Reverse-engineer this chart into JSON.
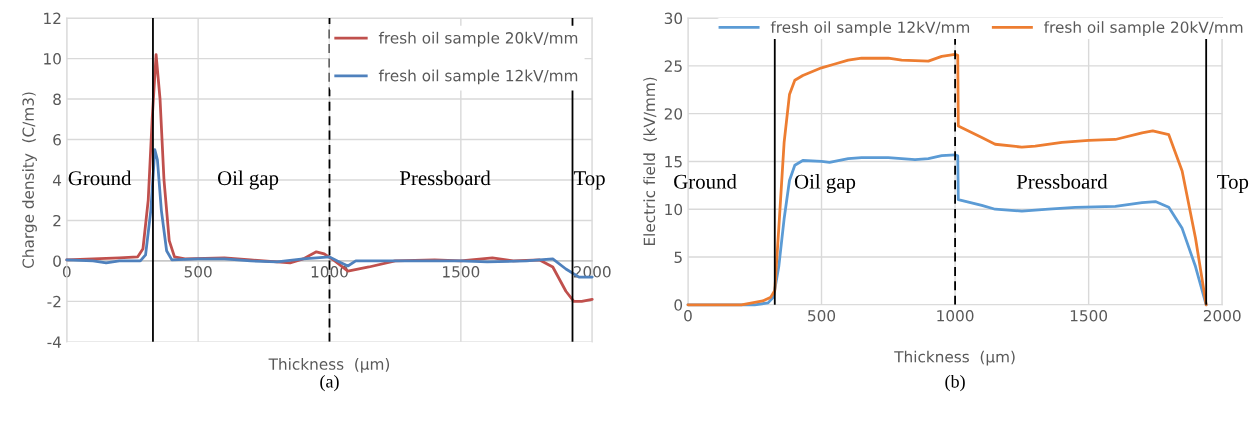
{
  "chart_data": [
    {
      "type": "line",
      "xlabel": "Thickness  (μm)",
      "ylabel": "Charge density  (C/m3)",
      "xlim": [
        0,
        2000
      ],
      "xticks": [
        0,
        500,
        1000,
        1500,
        2000
      ],
      "ylim": [
        -4,
        12
      ],
      "yticks": [
        -4,
        -2,
        0,
        2,
        4,
        6,
        8,
        10,
        12
      ],
      "grid": true,
      "legend": "top right",
      "series": [
        {
          "name": "fresh oil sample 20kV/mm",
          "color": "#c0504d",
          "x": [
            0,
            100,
            200,
            270,
            290,
            310,
            325,
            340,
            355,
            370,
            390,
            410,
            450,
            600,
            700,
            800,
            850,
            900,
            950,
            980,
            1020,
            1070,
            1150,
            1250,
            1400,
            1500,
            1620,
            1700,
            1800,
            1850,
            1900,
            1930,
            1960,
            2000
          ],
          "values": [
            0.05,
            0.1,
            0.15,
            0.2,
            0.6,
            3,
            7,
            10.2,
            8,
            4,
            1,
            0.2,
            0.1,
            0.15,
            0.05,
            -0.05,
            -0.1,
            0.1,
            0.45,
            0.35,
            0,
            -0.5,
            -0.3,
            0,
            0.05,
            0,
            0.15,
            0,
            0.05,
            -0.3,
            -1.5,
            -2,
            -2,
            -1.9
          ]
        },
        {
          "name": "fresh oil sample 12kV/mm",
          "color": "#4f81bd",
          "x": [
            0,
            100,
            150,
            200,
            280,
            300,
            320,
            335,
            345,
            360,
            380,
            400,
            500,
            600,
            700,
            800,
            900,
            1000,
            1030,
            1070,
            1100,
            1300,
            1500,
            1600,
            1750,
            1850,
            1900,
            1950,
            2000
          ],
          "values": [
            0.05,
            0,
            -0.1,
            0,
            0,
            0.3,
            2.5,
            5.5,
            5,
            2.5,
            0.5,
            0.05,
            0.1,
            0.1,
            0,
            -0.05,
            0.1,
            0.2,
            0,
            -0.25,
            0,
            0,
            0,
            -0.05,
            0,
            0.1,
            -0.4,
            -0.8,
            -0.8
          ]
        }
      ],
      "ref_lines": [
        {
          "axis": "x",
          "value": 328,
          "color": "#000000",
          "line_style": "solid"
        },
        {
          "axis": "x",
          "value": 1000,
          "color": "#000000",
          "line_style": "dashed"
        },
        {
          "axis": "x",
          "value": 1925,
          "color": "#000000",
          "line_style": "solid"
        }
      ],
      "annotations": [
        "Ground",
        "Oil gap",
        "Pressboard",
        "Top",
        "(a)"
      ]
    },
    {
      "type": "line",
      "xlabel": "Thickness  (μm)",
      "ylabel": "Electric field  (kV/mm)",
      "xlim": [
        0,
        2000
      ],
      "xticks": [
        0,
        500,
        1000,
        1500,
        2000
      ],
      "ylim": [
        0,
        30
      ],
      "yticks": [
        0,
        5,
        10,
        15,
        20,
        25,
        30
      ],
      "grid": true,
      "legend": "top",
      "series": [
        {
          "name": "fresh oil sample 12kV/mm",
          "color": "#5b9bd5",
          "x": [
            0,
            250,
            300,
            320,
            340,
            360,
            380,
            400,
            430,
            500,
            530,
            600,
            650,
            750,
            850,
            900,
            950,
            1000,
            1010,
            1012,
            1100,
            1150,
            1250,
            1350,
            1450,
            1600,
            1700,
            1750,
            1800,
            1850,
            1900,
            1940
          ],
          "values": [
            0,
            0,
            0.2,
            0.8,
            4,
            9,
            13,
            14.6,
            15.1,
            15,
            14.9,
            15.3,
            15.4,
            15.4,
            15.2,
            15.3,
            15.6,
            15.7,
            15.6,
            11,
            10.4,
            10,
            9.8,
            10,
            10.2,
            10.3,
            10.7,
            10.8,
            10.2,
            8,
            4,
            0
          ]
        },
        {
          "name": "fresh oil sample 20kV/mm",
          "color": "#ed7d31",
          "x": [
            0,
            200,
            280,
            310,
            325,
            340,
            360,
            380,
            400,
            430,
            500,
            550,
            600,
            650,
            750,
            800,
            900,
            950,
            1000,
            1010,
            1012,
            1100,
            1150,
            1250,
            1300,
            1400,
            1500,
            1600,
            1700,
            1740,
            1800,
            1850,
            1900,
            1940
          ],
          "values": [
            0,
            0,
            0.4,
            0.8,
            1.5,
            8,
            17,
            22,
            23.5,
            24,
            24.8,
            25.2,
            25.6,
            25.8,
            25.8,
            25.6,
            25.5,
            26,
            26.2,
            26.1,
            18.7,
            17.5,
            16.8,
            16.5,
            16.6,
            17,
            17.2,
            17.3,
            18,
            18.2,
            17.8,
            14,
            7,
            0
          ]
        }
      ],
      "ref_lines": [
        {
          "axis": "x",
          "value": 325,
          "color": "#000000",
          "line_style": "solid"
        },
        {
          "axis": "x",
          "value": 1000,
          "color": "#000000",
          "line_style": "dashed"
        },
        {
          "axis": "x",
          "value": 1940,
          "color": "#000000",
          "line_style": "solid"
        }
      ],
      "annotations": [
        "Ground",
        "Oil gap",
        "Pressboard",
        "Top",
        "(b)"
      ]
    }
  ]
}
